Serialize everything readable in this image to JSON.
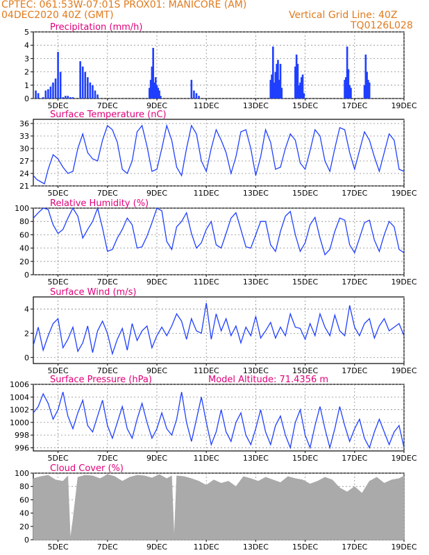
{
  "header": {
    "line1": "CPTEC:   061:53W-07:01S   PROX01: MANICORE (AM)",
    "date": "04DEC2020 40Z (GMT)",
    "grid_note": "Vertical Grid Line: 40Z",
    "run": "TQ0126L028"
  },
  "colors": {
    "header": "#e07a1c",
    "title": "#e0007a",
    "series": "#1f3fff",
    "cloud": "#aaaaaa"
  },
  "x_ticks": [
    "5DEC",
    "7DEC",
    "9DEC",
    "11DEC",
    "13DEC",
    "15DEC",
    "17DEC",
    "19DEC"
  ],
  "chart_data": [
    {
      "type": "bar",
      "title": "Precipitation (mm/h)",
      "ylim": [
        0,
        5
      ],
      "yticks": [
        0,
        1,
        2,
        3,
        4,
        5
      ],
      "xlim": [
        4.0,
        19.0
      ],
      "x": [
        4.1,
        4.2,
        4.3,
        4.4,
        4.5,
        4.6,
        4.7,
        4.8,
        4.9,
        5.0,
        5.1,
        5.2,
        5.3,
        5.4,
        5.5,
        5.6,
        5.9,
        6.0,
        6.1,
        6.2,
        6.3,
        6.4,
        6.5,
        6.6,
        8.7,
        8.75,
        8.8,
        8.85,
        8.9,
        8.95,
        9.0,
        9.05,
        9.1,
        9.15,
        10.4,
        10.5,
        10.6,
        10.7,
        13.6,
        13.65,
        13.7,
        13.75,
        13.8,
        13.85,
        13.9,
        13.95,
        14.0,
        14.05,
        14.6,
        14.65,
        14.7,
        14.75,
        14.8,
        14.85,
        14.9,
        14.95,
        16.6,
        16.65,
        16.7,
        16.75,
        16.8,
        16.85,
        17.4,
        17.45,
        17.5,
        17.55,
        17.6
      ],
      "values": [
        0.6,
        0.4,
        0,
        0.1,
        0.6,
        0.7,
        0.9,
        1.2,
        1.5,
        3.5,
        2.0,
        0.1,
        0.2,
        0.2,
        0.1,
        0.1,
        2.8,
        2.4,
        2.0,
        1.6,
        1.2,
        1.0,
        0.6,
        0.3,
        0.8,
        1.4,
        2.4,
        3.8,
        1.2,
        1.6,
        1.0,
        0.8,
        0.6,
        0.2,
        1.4,
        0.6,
        0.4,
        0.2,
        1.4,
        1.8,
        3.9,
        1.2,
        2.0,
        2.6,
        2.9,
        1.4,
        2.6,
        0.8,
        2.4,
        3.3,
        2.6,
        1.0,
        1.2,
        1.6,
        1.8,
        0.4,
        1.4,
        1.6,
        3.9,
        2.2,
        1.0,
        0.8,
        1.0,
        3.3,
        2.0,
        1.4,
        1.2
      ]
    },
    {
      "type": "line",
      "title": "Surface Temperature (nC)",
      "ylim": [
        21,
        37
      ],
      "yticks": [
        21,
        24,
        27,
        30,
        33,
        36
      ],
      "xlim": [
        4.0,
        19.0
      ],
      "x": [
        4.0,
        4.15,
        4.3,
        4.45,
        4.6,
        4.8,
        5.0,
        5.2,
        5.4,
        5.6,
        5.8,
        6.0,
        6.2,
        6.4,
        6.6,
        6.8,
        7.0,
        7.2,
        7.4,
        7.6,
        7.8,
        8.0,
        8.2,
        8.4,
        8.6,
        8.8,
        9.0,
        9.2,
        9.4,
        9.6,
        9.8,
        10.0,
        10.2,
        10.4,
        10.6,
        10.8,
        11.0,
        11.2,
        11.4,
        11.6,
        11.8,
        12.0,
        12.2,
        12.4,
        12.6,
        12.8,
        13.0,
        13.2,
        13.4,
        13.6,
        13.8,
        14.0,
        14.2,
        14.4,
        14.6,
        14.8,
        15.0,
        15.2,
        15.4,
        15.6,
        15.8,
        16.0,
        16.2,
        16.4,
        16.6,
        16.8,
        17.0,
        17.2,
        17.4,
        17.6,
        17.8,
        18.0,
        18.2,
        18.4,
        18.6,
        18.8,
        19.0
      ],
      "values": [
        23.5,
        22.5,
        22.0,
        21.5,
        25.0,
        28.5,
        27.5,
        25.5,
        24.0,
        24.5,
        30.0,
        33.5,
        29.0,
        27.5,
        27.0,
        32.0,
        35.5,
        34.5,
        31.5,
        25.0,
        24.0,
        27.0,
        34.0,
        35.5,
        30.5,
        24.5,
        25.0,
        30.0,
        35.5,
        32.0,
        25.5,
        23.5,
        30.0,
        35.5,
        33.5,
        27.0,
        24.5,
        30.0,
        34.5,
        32.0,
        29.0,
        24.0,
        28.0,
        34.0,
        34.5,
        30.0,
        23.5,
        28.0,
        34.5,
        31.5,
        25.0,
        25.5,
        30.0,
        33.5,
        32.0,
        26.5,
        25.0,
        29.5,
        34.5,
        33.0,
        27.0,
        24.5,
        30.0,
        35.0,
        34.5,
        29.0,
        25.0,
        29.5,
        34.0,
        32.0,
        28.0,
        24.5,
        29.0,
        33.5,
        32.0,
        25.0,
        24.5
      ]
    },
    {
      "type": "line",
      "title": "Relative Humidity (%)",
      "ylim": [
        0,
        100
      ],
      "yticks": [
        0,
        20,
        40,
        60,
        80,
        100
      ],
      "xlim": [
        4.0,
        19.0
      ],
      "x": [
        4.0,
        4.2,
        4.4,
        4.6,
        4.8,
        5.0,
        5.2,
        5.4,
        5.6,
        5.8,
        6.0,
        6.2,
        6.4,
        6.6,
        6.8,
        7.0,
        7.2,
        7.4,
        7.6,
        7.8,
        8.0,
        8.2,
        8.4,
        8.6,
        8.8,
        9.0,
        9.2,
        9.4,
        9.6,
        9.8,
        10.0,
        10.2,
        10.4,
        10.6,
        10.8,
        11.0,
        11.2,
        11.4,
        11.6,
        11.8,
        12.0,
        12.2,
        12.4,
        12.6,
        12.8,
        13.0,
        13.2,
        13.4,
        13.6,
        13.8,
        14.0,
        14.2,
        14.4,
        14.6,
        14.8,
        15.0,
        15.2,
        15.4,
        15.6,
        15.8,
        16.0,
        16.2,
        16.4,
        16.6,
        16.8,
        17.0,
        17.2,
        17.4,
        17.6,
        17.8,
        18.0,
        18.2,
        18.4,
        18.6,
        18.8,
        19.0
      ],
      "values": [
        85,
        93,
        100,
        98,
        75,
        62,
        68,
        85,
        100,
        88,
        55,
        68,
        80,
        100,
        70,
        35,
        38,
        55,
        68,
        85,
        75,
        40,
        42,
        58,
        78,
        100,
        96,
        50,
        38,
        72,
        80,
        93,
        62,
        40,
        48,
        68,
        80,
        45,
        40,
        62,
        85,
        93,
        68,
        42,
        40,
        60,
        80,
        80,
        45,
        35,
        65,
        88,
        95,
        60,
        35,
        48,
        75,
        86,
        55,
        30,
        38,
        65,
        85,
        82,
        45,
        33,
        55,
        78,
        82,
        52,
        35,
        60,
        80,
        72,
        38,
        33
      ]
    },
    {
      "type": "line",
      "title": "Surface Wind (m/s)",
      "ylim": [
        -0.5,
        5
      ],
      "yticks": [
        0,
        2,
        4
      ],
      "xlim": [
        4.0,
        19.0
      ],
      "x": [
        4.0,
        4.2,
        4.4,
        4.6,
        4.8,
        5.0,
        5.2,
        5.4,
        5.6,
        5.8,
        6.0,
        6.2,
        6.4,
        6.6,
        6.8,
        7.0,
        7.2,
        7.4,
        7.6,
        7.8,
        8.0,
        8.2,
        8.4,
        8.6,
        8.8,
        9.0,
        9.2,
        9.4,
        9.6,
        9.8,
        10.0,
        10.2,
        10.4,
        10.6,
        10.8,
        11.0,
        11.2,
        11.4,
        11.6,
        11.8,
        12.0,
        12.2,
        12.4,
        12.6,
        12.8,
        13.0,
        13.2,
        13.4,
        13.6,
        13.8,
        14.0,
        14.2,
        14.4,
        14.6,
        14.8,
        15.0,
        15.2,
        15.4,
        15.6,
        15.8,
        16.0,
        16.2,
        16.4,
        16.6,
        16.8,
        17.0,
        17.2,
        17.4,
        17.6,
        17.8,
        18.0,
        18.2,
        18.4,
        18.6,
        18.8,
        19.0
      ],
      "values": [
        1.0,
        2.5,
        0.6,
        1.8,
        2.8,
        3.2,
        0.8,
        1.5,
        2.5,
        0.5,
        1.2,
        2.6,
        0.4,
        2.2,
        3.0,
        2.0,
        0.3,
        1.5,
        2.4,
        0.6,
        2.8,
        1.4,
        2.2,
        2.6,
        0.8,
        1.8,
        2.5,
        1.8,
        2.6,
        3.6,
        3.0,
        1.5,
        3.2,
        2.2,
        2.0,
        4.5,
        1.5,
        3.6,
        2.2,
        3.2,
        1.8,
        2.6,
        1.2,
        2.5,
        1.8,
        3.4,
        1.6,
        2.2,
        2.9,
        1.6,
        2.5,
        1.8,
        3.6,
        2.5,
        2.4,
        1.5,
        2.8,
        1.8,
        3.6,
        2.5,
        1.8,
        3.5,
        2.2,
        1.8,
        4.3,
        2.5,
        1.8,
        2.8,
        3.2,
        1.6,
        2.6,
        3.2,
        2.2,
        2.5,
        2.8,
        1.8
      ]
    },
    {
      "type": "line",
      "title": "Surface Pressure (hPa)",
      "annotation": "Model Altitude: 71.4356 m",
      "ylim": [
        995.5,
        1006
      ],
      "yticks": [
        996,
        998,
        1000,
        1002,
        1004,
        1006
      ],
      "xlim": [
        4.0,
        19.0
      ],
      "x": [
        4.0,
        4.2,
        4.4,
        4.6,
        4.8,
        5.0,
        5.2,
        5.4,
        5.6,
        5.8,
        6.0,
        6.2,
        6.4,
        6.6,
        6.8,
        7.0,
        7.2,
        7.4,
        7.6,
        7.8,
        8.0,
        8.2,
        8.4,
        8.6,
        8.8,
        9.0,
        9.2,
        9.4,
        9.6,
        9.8,
        10.0,
        10.2,
        10.4,
        10.6,
        10.8,
        11.0,
        11.2,
        11.4,
        11.6,
        11.8,
        12.0,
        12.2,
        12.4,
        12.6,
        12.8,
        13.0,
        13.2,
        13.4,
        13.6,
        13.8,
        14.0,
        14.2,
        14.4,
        14.6,
        14.8,
        15.0,
        15.2,
        15.4,
        15.6,
        15.8,
        16.0,
        16.2,
        16.4,
        16.6,
        16.8,
        17.0,
        17.2,
        17.4,
        17.6,
        17.8,
        18.0,
        18.2,
        18.4,
        18.6,
        18.8,
        19.0
      ],
      "values": [
        1001.5,
        1002.5,
        1004.5,
        1003.0,
        1000.5,
        1002.0,
        1004.8,
        1001.0,
        999.0,
        1001.5,
        1003.5,
        999.5,
        998.5,
        1001.0,
        1003.5,
        999.5,
        997.5,
        1000.0,
        1002.5,
        999.0,
        997.5,
        1000.5,
        1003.0,
        1000.0,
        997.5,
        999.0,
        1001.5,
        999.0,
        998.0,
        1000.5,
        1004.8,
        1000.0,
        997.0,
        1000.5,
        1004.0,
        1000.0,
        996.5,
        998.5,
        1002.0,
        998.5,
        997.0,
        1000.0,
        1001.5,
        998.0,
        996.5,
        999.0,
        1002.0,
        998.5,
        996.5,
        999.5,
        1001.0,
        998.0,
        996.0,
        1000.0,
        1002.0,
        998.0,
        996.0,
        999.5,
        1002.5,
        999.0,
        996.0,
        999.0,
        1002.5,
        999.5,
        997.0,
        999.0,
        1000.5,
        997.5,
        996.0,
        998.5,
        1000.5,
        998.5,
        996.5,
        998.5,
        999.5,
        996.0
      ]
    },
    {
      "type": "area",
      "title": "Cloud Cover (%)",
      "ylim": [
        0,
        100
      ],
      "yticks": [
        0,
        20,
        40,
        60,
        80,
        100
      ],
      "xlim": [
        4.0,
        19.0
      ],
      "x": [
        4.0,
        4.3,
        4.6,
        4.9,
        5.2,
        5.4,
        5.5,
        5.6,
        5.8,
        6.1,
        6.4,
        6.7,
        7.0,
        7.3,
        7.6,
        7.9,
        8.2,
        8.5,
        8.8,
        9.1,
        9.4,
        9.6,
        9.7,
        9.8,
        10.1,
        10.4,
        10.7,
        11.0,
        11.3,
        11.6,
        11.9,
        12.2,
        12.5,
        12.8,
        13.1,
        13.4,
        13.7,
        14.0,
        14.3,
        14.6,
        14.9,
        15.2,
        15.5,
        15.8,
        16.1,
        16.4,
        16.7,
        17.0,
        17.3,
        17.6,
        17.9,
        18.2,
        18.5,
        18.8,
        19.0
      ],
      "values": [
        92,
        95,
        97,
        90,
        88,
        96,
        2,
        30,
        94,
        97,
        96,
        92,
        98,
        95,
        88,
        94,
        97,
        96,
        93,
        98,
        92,
        96,
        3,
        96,
        95,
        92,
        88,
        82,
        90,
        85,
        88,
        80,
        95,
        92,
        88,
        94,
        90,
        86,
        95,
        92,
        90,
        84,
        88,
        94,
        90,
        78,
        72,
        80,
        70,
        88,
        94,
        85,
        90,
        92,
        96
      ]
    }
  ]
}
